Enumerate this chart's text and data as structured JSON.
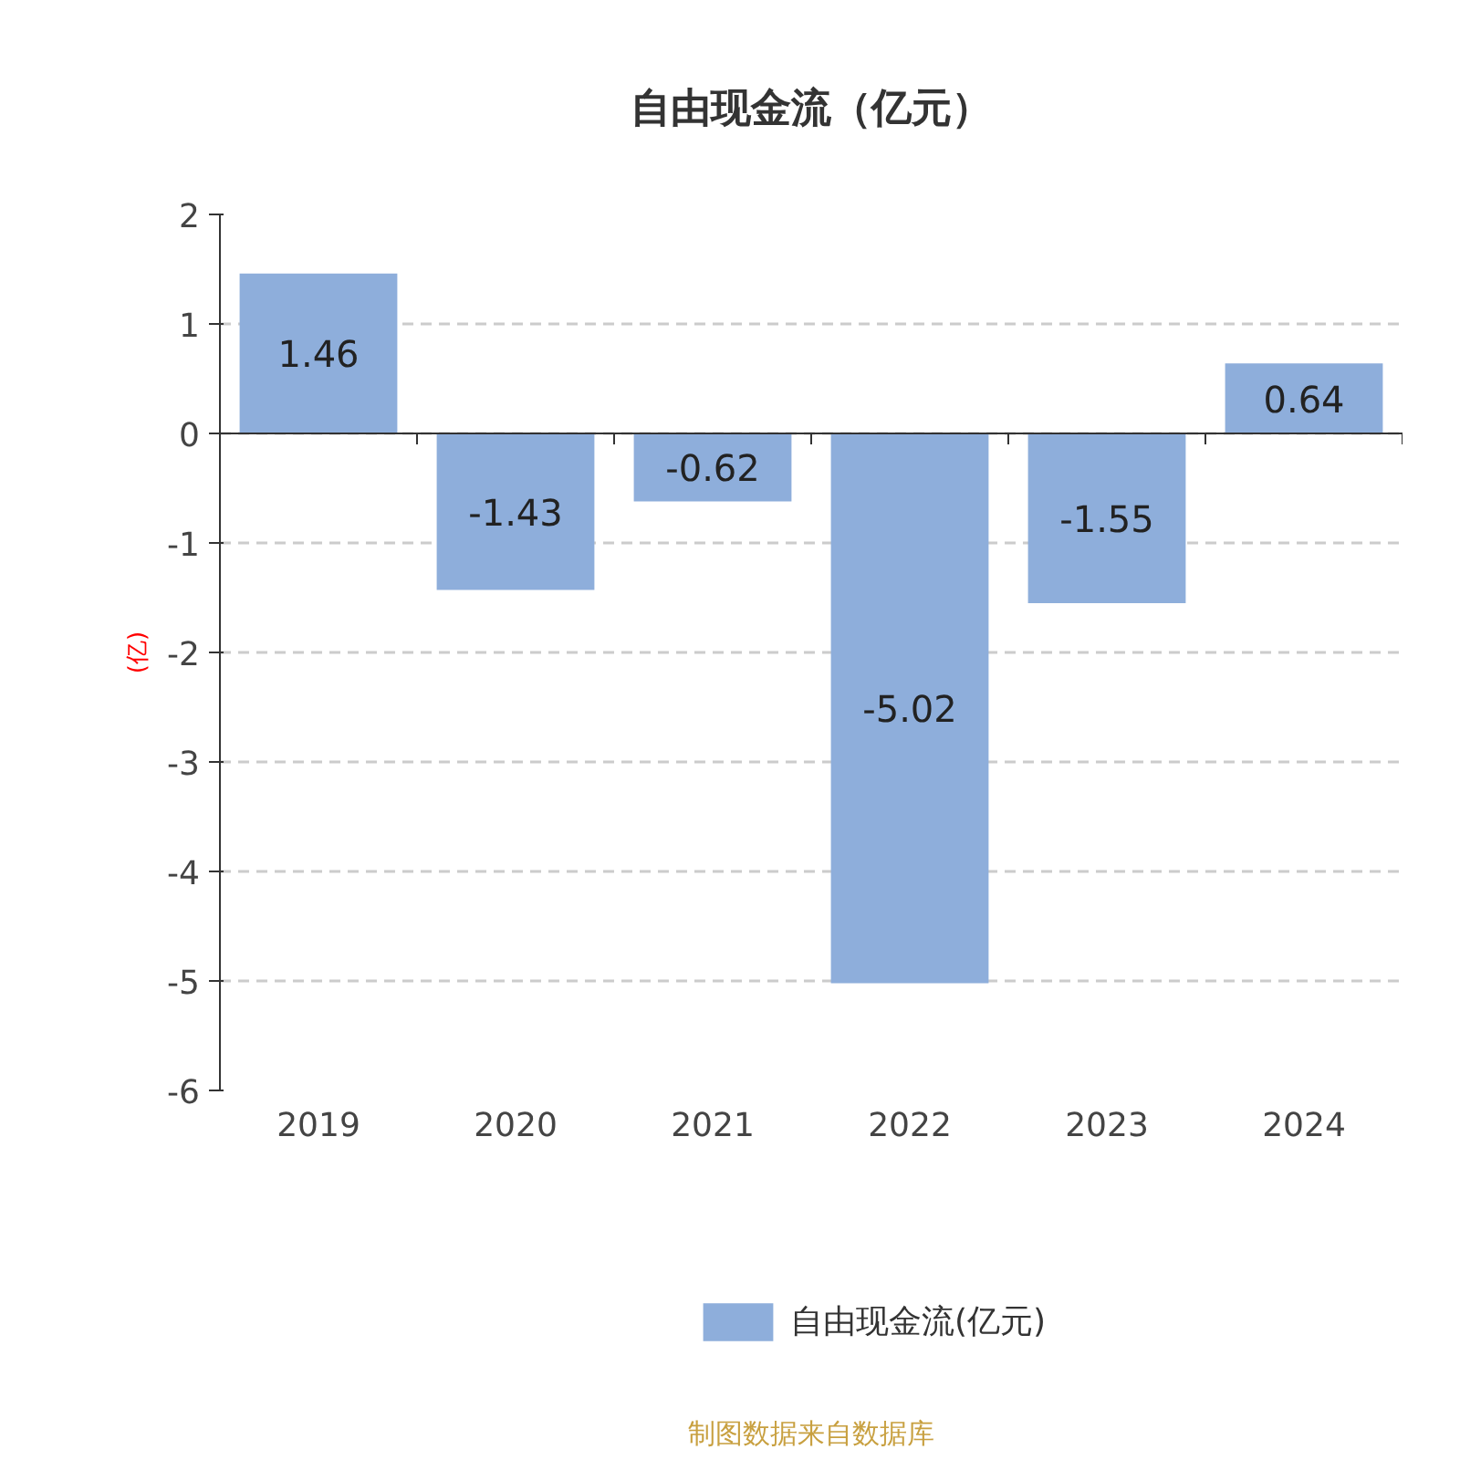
{
  "chart_data": {
    "type": "bar",
    "title": "自由现金流（亿元）",
    "ylabel": "(亿)",
    "categories": [
      "2019",
      "2020",
      "2021",
      "2022",
      "2023",
      "2024"
    ],
    "series": [
      {
        "name": "自由现金流(亿元)",
        "color": "#8eaedb",
        "values": [
          1.46,
          -1.43,
          -0.62,
          -5.02,
          -1.55,
          0.64
        ]
      }
    ],
    "ylim": [
      -6,
      2
    ],
    "yticks": [
      -6,
      -5,
      -4,
      -3,
      -2,
      -1,
      0,
      1,
      2
    ],
    "grid": "y",
    "legend": "bottom",
    "data_labels": true,
    "annotations": [
      "制图数据来自数据库"
    ]
  }
}
